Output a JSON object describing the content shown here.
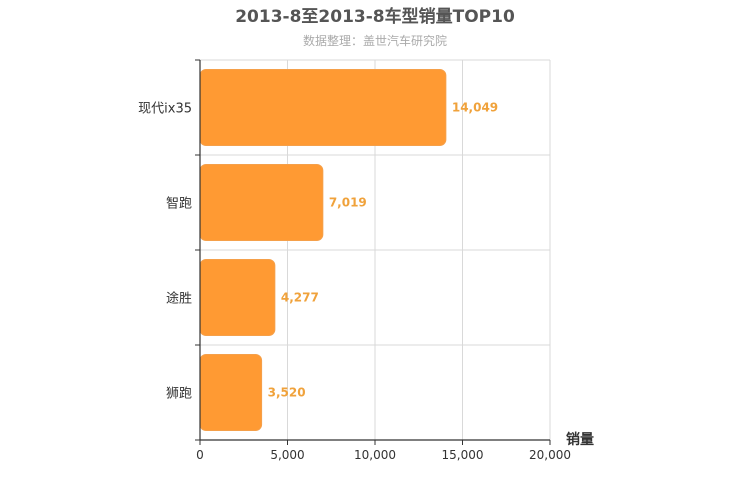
{
  "chart_data": {
    "type": "bar",
    "orientation": "horizontal",
    "title": "2013-8至2013-8车型销量TOP10",
    "subtitle": "数据整理：盖世汽车研究院",
    "xlabel": "销量",
    "categories": [
      "现代ix35",
      "智跑",
      "途胜",
      "狮跑"
    ],
    "values": [
      14049,
      7019,
      4277,
      3520
    ],
    "value_labels": [
      "14,049",
      "7,019",
      "4,277",
      "3,520"
    ],
    "xlim": [
      0,
      20000
    ],
    "xticks": [
      0,
      5000,
      10000,
      15000,
      20000
    ],
    "xtick_labels": [
      "0",
      "5,000",
      "10,000",
      "15,000",
      "20,000"
    ],
    "grid": true,
    "colors": {
      "bar": "#ff9a33",
      "bar_stroke": "#f5a04a",
      "value_label": "#f0a23b",
      "grid": "#d9d9d9",
      "axis": "#333333"
    }
  }
}
